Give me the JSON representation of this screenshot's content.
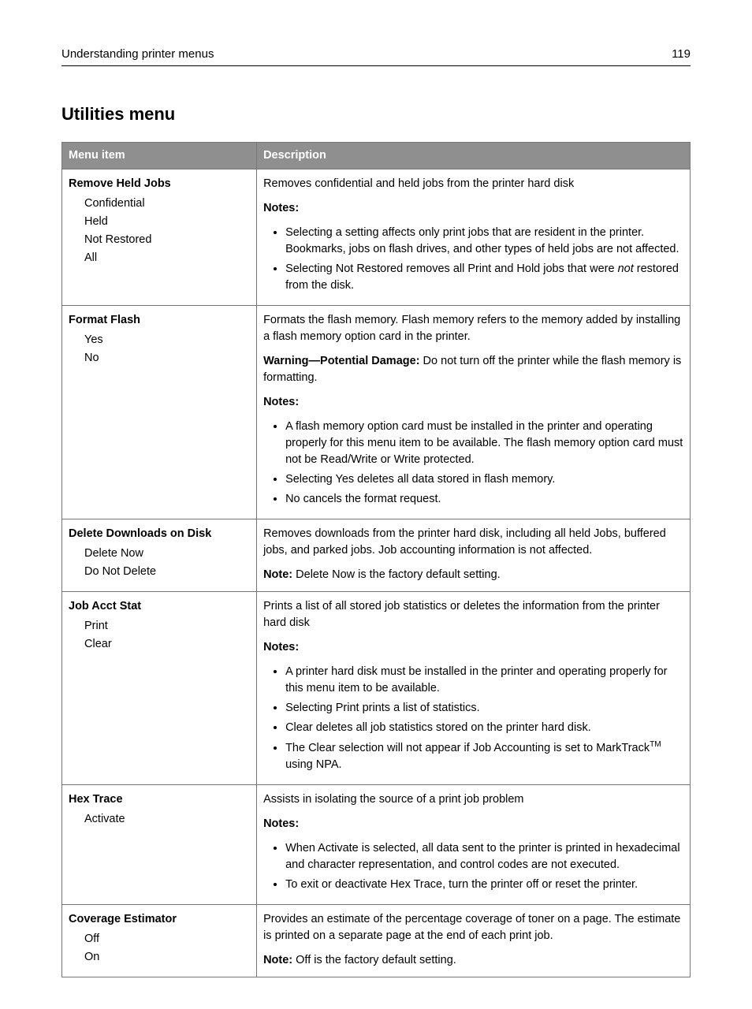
{
  "header": {
    "title": "Understanding printer menus",
    "page_number": "119"
  },
  "section_title": "Utilities menu",
  "table": {
    "col_menu": "Menu item",
    "col_desc": "Description",
    "notes_label": "Notes:",
    "note_label": "Note:",
    "warning_label": "Warning—Potential Damage:",
    "rows": {
      "r0": {
        "title": "Remove Held Jobs",
        "opts": [
          "Confidential",
          "Held",
          "Not Restored",
          "All"
        ],
        "p0": "Removes confidential and held jobs from the printer hard disk",
        "b0": "Selecting a setting affects only print jobs that are resident in the printer. Bookmarks, jobs on flash drives, and other types of held jobs are not affected.",
        "b1_pre": "Selecting Not Restored removes all Print and Hold jobs that were ",
        "b1_em": "not",
        "b1_post": " restored from the disk."
      },
      "r1": {
        "title": "Format Flash",
        "opts": [
          "Yes",
          "No"
        ],
        "p0": "Formats the flash memory. Flash memory refers to the memory added by installing a flash memory option card in the printer.",
        "warn": " Do not turn off the printer while the flash memory is formatting.",
        "b0": "A flash memory option card must be installed in the printer and operating properly for this menu item to be available. The flash memory option card must not be Read/Write or Write protected.",
        "b1": "Selecting Yes deletes all data stored in flash memory.",
        "b2": "No cancels the format request."
      },
      "r2": {
        "title": "Delete Downloads on Disk",
        "opts": [
          "Delete Now",
          "Do Not Delete"
        ],
        "p0": "Removes downloads from the printer hard disk, including all held Jobs, buffered jobs, and parked jobs. Job accounting information is not affected.",
        "note": " Delete Now is the factory default setting."
      },
      "r3": {
        "title": "Job Acct Stat",
        "opts": [
          "Print",
          "Clear"
        ],
        "p0": "Prints a list of all stored job statistics or deletes the information from the printer hard disk",
        "b0": "A printer hard disk must be installed in the printer and operating properly for this menu item to be available.",
        "b1": "Selecting Print prints a list of statistics.",
        "b2": "Clear deletes all job statistics stored on the printer hard disk.",
        "b3_pre": "The Clear selection will not appear if Job Accounting is set to MarkTrack",
        "b3_tm": "TM",
        "b3_post": " using NPA."
      },
      "r4": {
        "title": "Hex Trace",
        "opts": [
          "Activate"
        ],
        "p0": "Assists in isolating the source of a print job problem",
        "b0": "When Activate is selected, all data sent to the printer is printed in hexadecimal and character representation, and control codes are not executed.",
        "b1": "To exit or deactivate Hex Trace, turn the printer off or reset the printer."
      },
      "r5": {
        "title": "Coverage Estimator",
        "opts": [
          "Off",
          "On"
        ],
        "p0": "Provides an estimate of the percentage coverage of toner on a page. The estimate is printed on a separate page at the end of each print job.",
        "note": " Off is the factory default setting."
      }
    }
  }
}
